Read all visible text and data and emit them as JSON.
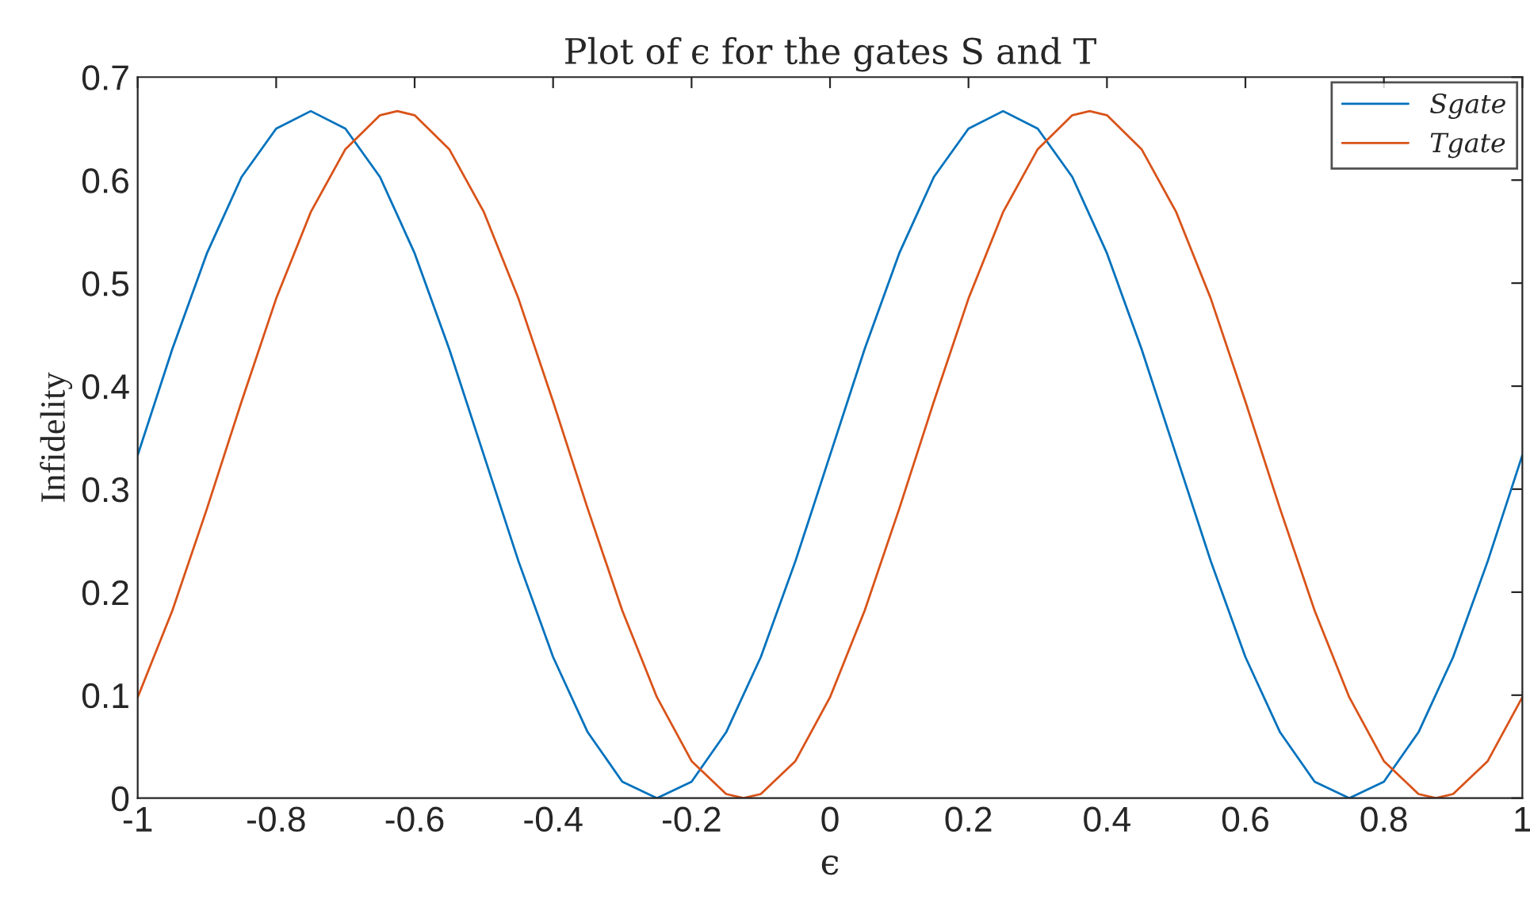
{
  "chart_data": {
    "type": "line",
    "title": "Plot of ϵ for the gates S and T",
    "xlabel": "ϵ",
    "ylabel": "Infidelity",
    "series": [
      {
        "name": "Sgate",
        "color": "#0072bd",
        "x": [
          -1,
          -0.95,
          -0.9,
          -0.85,
          -0.8,
          -0.75,
          -0.7,
          -0.65,
          -0.6,
          -0.55,
          -0.5,
          -0.45,
          -0.4,
          -0.35,
          -0.3,
          -0.25,
          -0.2,
          -0.15,
          -0.1,
          -0.05,
          0,
          0.05,
          0.1,
          0.15,
          0.2,
          0.25,
          0.3,
          0.35,
          0.4,
          0.45,
          0.5,
          0.55,
          0.6,
          0.65,
          0.7,
          0.75,
          0.8,
          0.85,
          0.9,
          0.95,
          1
        ],
        "values": [
          0.333,
          0.436,
          0.529,
          0.603,
          0.65,
          0.667,
          0.65,
          0.603,
          0.529,
          0.436,
          0.333,
          0.23,
          0.137,
          0.064,
          0.016,
          0,
          0.016,
          0.064,
          0.137,
          0.23,
          0.333,
          0.436,
          0.529,
          0.603,
          0.65,
          0.667,
          0.65,
          0.603,
          0.529,
          0.436,
          0.333,
          0.23,
          0.137,
          0.064,
          0.016,
          0,
          0.016,
          0.064,
          0.137,
          0.23,
          0.333
        ]
      },
      {
        "name": "Tgate",
        "color": "#d95319",
        "x": [
          -1,
          -0.95,
          -0.9,
          -0.85,
          -0.8,
          -0.75,
          -0.7,
          -0.65,
          -0.625,
          -0.6,
          -0.55,
          -0.5,
          -0.45,
          -0.4,
          -0.35,
          -0.3,
          -0.25,
          -0.2,
          -0.15,
          -0.125,
          -0.1,
          -0.05,
          0,
          0.05,
          0.1,
          0.15,
          0.2,
          0.25,
          0.3,
          0.35,
          0.375,
          0.4,
          0.45,
          0.5,
          0.55,
          0.6,
          0.65,
          0.7,
          0.75,
          0.8,
          0.85,
          0.875,
          0.9,
          0.95,
          1
        ],
        "values": [
          0.098,
          0.182,
          0.281,
          0.385,
          0.485,
          0.569,
          0.63,
          0.663,
          0.667,
          0.663,
          0.63,
          0.569,
          0.485,
          0.385,
          0.281,
          0.182,
          0.098,
          0.036,
          0.004,
          0,
          0.004,
          0.036,
          0.098,
          0.182,
          0.281,
          0.385,
          0.485,
          0.569,
          0.63,
          0.663,
          0.667,
          0.663,
          0.63,
          0.569,
          0.485,
          0.385,
          0.281,
          0.182,
          0.098,
          0.036,
          0.004,
          0,
          0.004,
          0.036,
          0.098
        ]
      }
    ],
    "xlim": [
      -1,
      1
    ],
    "xticks": [
      -1,
      -0.8,
      -0.6,
      -0.4,
      -0.2,
      0,
      0.2,
      0.4,
      0.6,
      0.8,
      1
    ],
    "ylim": [
      0,
      0.7
    ],
    "yticks": [
      0,
      0.1,
      0.2,
      0.3,
      0.4,
      0.5,
      0.6,
      0.7
    ],
    "grid": false,
    "legend": "top right"
  }
}
